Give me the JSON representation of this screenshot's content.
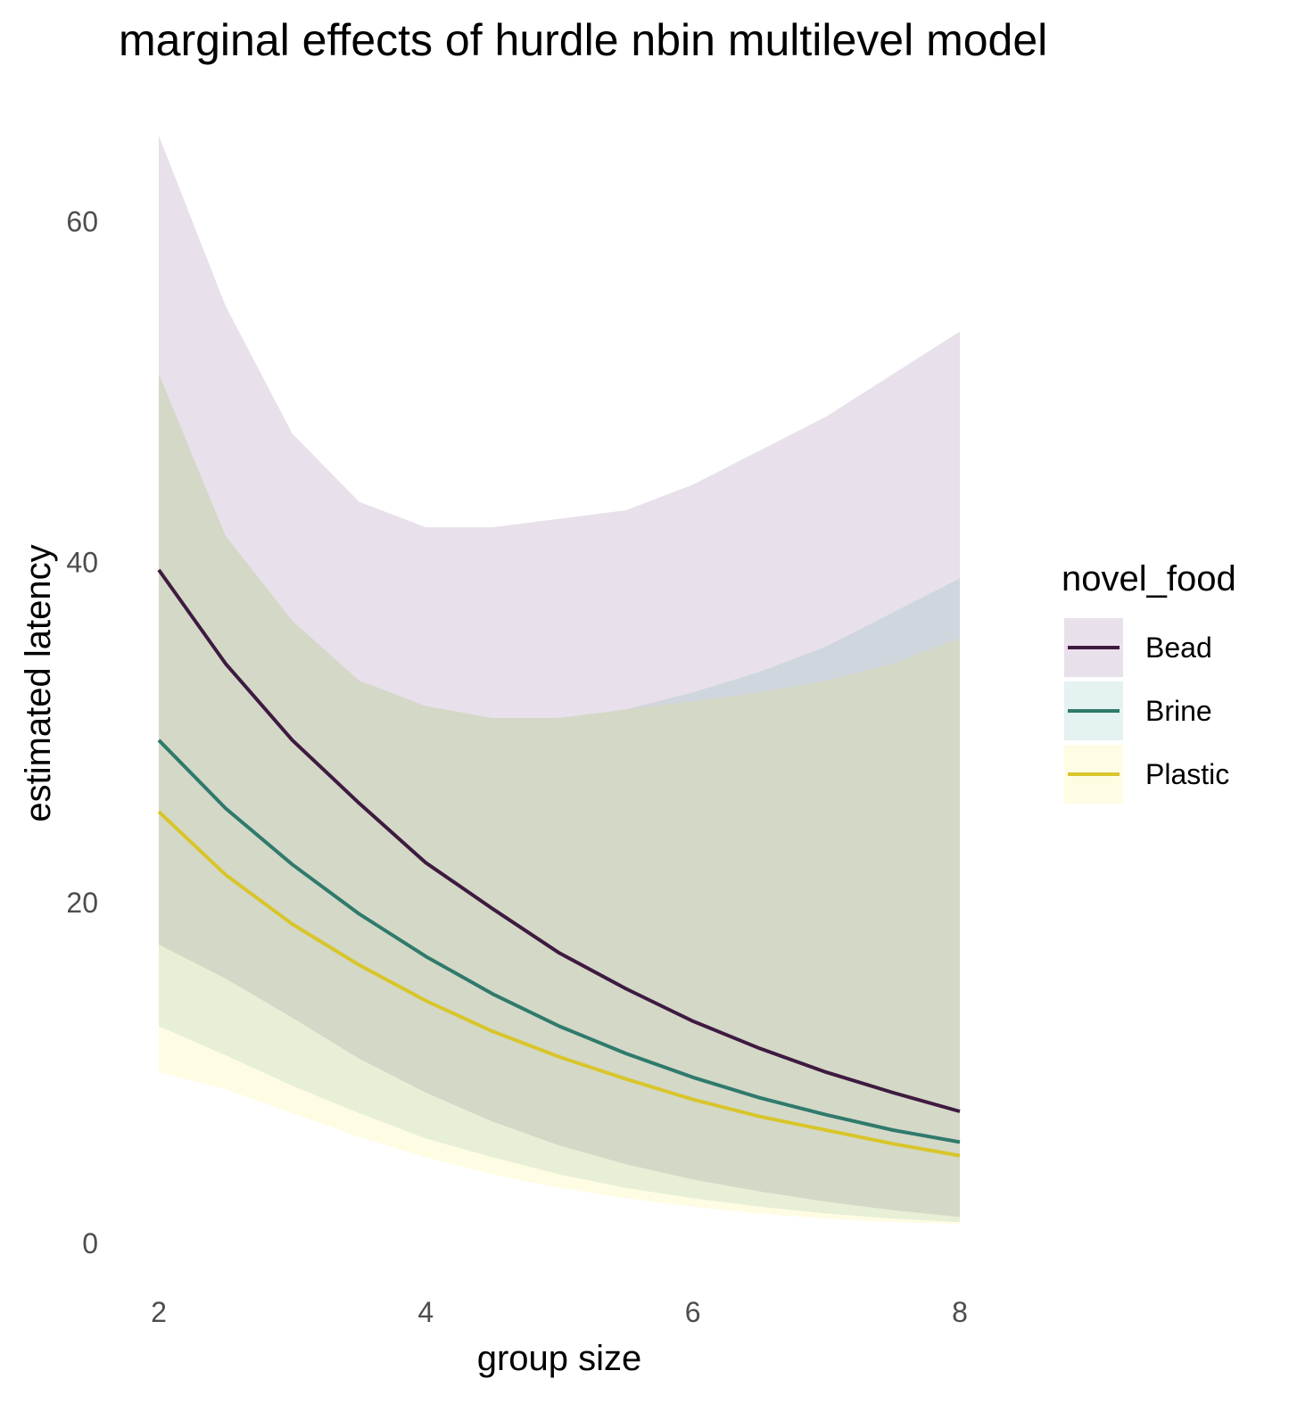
{
  "chart_data": {
    "type": "line",
    "title": "marginal effects of hurdle nbin multilevel model",
    "xlabel": "group size",
    "ylabel": "estimated latency",
    "xlim": [
      2,
      8
    ],
    "ylim": [
      0,
      65
    ],
    "x_ticks": [
      2,
      4,
      6,
      8
    ],
    "y_ticks": [
      0,
      20,
      40,
      60
    ],
    "grid": false,
    "legend": {
      "title": "novel_food",
      "position": "right"
    },
    "x": [
      2,
      2.5,
      3,
      3.5,
      4,
      4.5,
      5,
      5.5,
      6,
      6.5,
      7,
      7.5,
      8
    ],
    "series": [
      {
        "name": "Bead",
        "color": "#440154",
        "values": [
          39.5,
          34.0,
          29.5,
          25.8,
          22.3,
          19.6,
          17.0,
          14.9,
          13.0,
          11.4,
          10.0,
          8.8,
          7.7
        ],
        "lower": [
          17.5,
          15.5,
          13.2,
          10.8,
          8.8,
          7.1,
          5.7,
          4.6,
          3.7,
          3.0,
          2.4,
          1.9,
          1.5
        ],
        "upper": [
          65.0,
          55.0,
          47.5,
          43.5,
          42.0,
          42.0,
          42.5,
          43.0,
          44.5,
          46.5,
          48.5,
          51.0,
          53.5
        ]
      },
      {
        "name": "Brine",
        "color": "#21908c",
        "values": [
          29.5,
          25.5,
          22.2,
          19.3,
          16.8,
          14.6,
          12.7,
          11.1,
          9.7,
          8.5,
          7.5,
          6.6,
          5.9
        ],
        "lower": [
          12.7,
          11.0,
          9.2,
          7.6,
          6.1,
          5.0,
          4.0,
          3.2,
          2.6,
          2.1,
          1.7,
          1.4,
          1.2
        ],
        "upper": [
          51.0,
          41.5,
          36.5,
          33.0,
          31.5,
          30.8,
          30.8,
          31.3,
          32.3,
          33.5,
          35.0,
          37.0,
          39.0
        ]
      },
      {
        "name": "Plastic",
        "color": "#fde725",
        "values": [
          25.3,
          21.6,
          18.7,
          16.3,
          14.2,
          12.4,
          10.9,
          9.6,
          8.4,
          7.4,
          6.6,
          5.8,
          5.1
        ],
        "lower": [
          10.0,
          9.0,
          7.6,
          6.2,
          5.0,
          4.0,
          3.2,
          2.6,
          2.1,
          1.7,
          1.4,
          1.2,
          1.1
        ],
        "upper": [
          51.0,
          41.5,
          36.5,
          33.0,
          31.5,
          30.8,
          30.8,
          31.3,
          31.8,
          32.3,
          33.0,
          34.0,
          35.5
        ]
      }
    ]
  }
}
